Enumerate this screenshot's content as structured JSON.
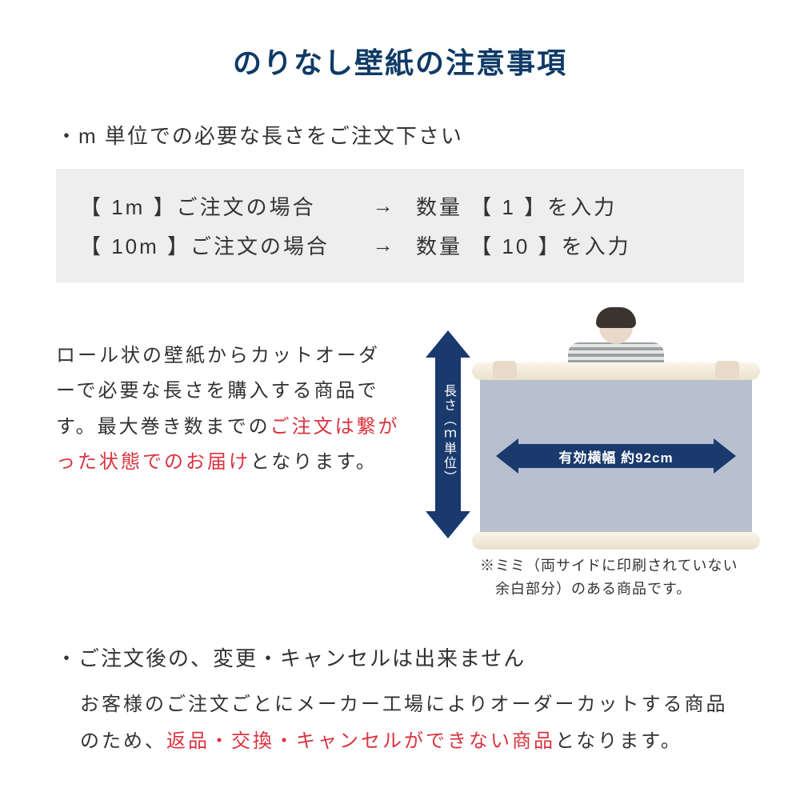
{
  "title": "のりなし壁紙の注意事項",
  "bullet1": "・m 単位での必要な長さをご注文下さい",
  "order_examples": [
    {
      "left": "【 1m 】ご注文の場合",
      "arrow": "→",
      "right": "数量 【 1 】を入力"
    },
    {
      "left": "【 10m 】ご注文の場合",
      "arrow": "→",
      "right": "数量 【 10 】を入力"
    }
  ],
  "desc_part1": "ロール状の壁紙からカットオーダーで必要な長さを購入する商品です。最大巻き数までの",
  "desc_red": "ご注文は繋がった状態でのお届け",
  "desc_part2": "となります。",
  "v_arrow_label": "長さ（ｍ単位）",
  "h_arrow_label": "有効横幅 約92cm",
  "note_line1": "※ミミ（両サイドに印刷されていない",
  "note_line2": "　余白部分）のある商品です。",
  "bullet2": "・ご注文後の、変更・キャンセルは出来ません",
  "body_part1": "お客様のご注文ごとにメーカー工場によりオーダーカットする商品のため、",
  "body_red": "返品・交換・キャンセルができない商品",
  "body_part2": "となります。",
  "colors": {
    "title": "#0f3a66",
    "accent_navy": "#1a3a6e",
    "red": "#d9333f",
    "box_bg": "#eeeeee",
    "sheet": "#b8bfcf",
    "roll": "#f5efdc"
  }
}
